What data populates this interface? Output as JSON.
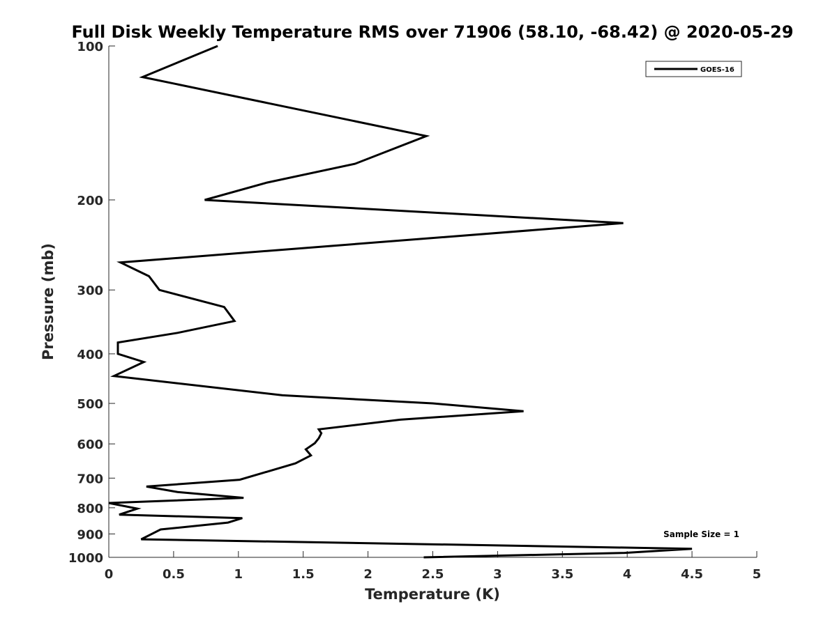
{
  "chart_data": {
    "type": "line",
    "title": "Full Disk Weekly Temperature RMS over 71906 (58.10, -68.42) @ 2020-05-29",
    "xlabel": "Temperature (K)",
    "ylabel": "Pressure (mb)",
    "xlim": [
      0,
      5
    ],
    "ylim": [
      1000,
      100
    ],
    "y_scale": "log",
    "y_reversed": true,
    "x_ticks": [
      "0",
      "0.5",
      "1",
      "1.5",
      "2",
      "2.5",
      "3",
      "3.5",
      "4",
      "4.5",
      "5"
    ],
    "y_ticks": [
      "100",
      "200",
      "300",
      "400",
      "500",
      "600",
      "700",
      "800",
      "900",
      "1000"
    ],
    "grid": false,
    "legend_position": "top-right",
    "annotation": "Sample Size = 1",
    "series": [
      {
        "name": "GOES-16",
        "color": "#000000",
        "x": [
          0.84,
          0.26,
          2.45,
          1.9,
          1.22,
          0.74,
          3.97,
          0.09,
          0.31,
          0.39,
          0.89,
          0.97,
          0.53,
          0.07,
          0.07,
          0.27,
          0.04,
          1.34,
          2.5,
          3.2,
          2.25,
          1.62,
          1.64,
          1.62,
          1.59,
          1.52,
          1.56,
          1.44,
          1.01,
          0.29,
          0.53,
          1.04,
          0.0,
          0.22,
          0.08,
          1.03,
          0.92,
          0.4,
          0.25,
          4.5,
          3.98,
          2.43
        ],
        "y": [
          100,
          115,
          150,
          170,
          185,
          200,
          222,
          265,
          282,
          300,
          324,
          345,
          364,
          380,
          400,
          415,
          442,
          482,
          500,
          518,
          538,
          562,
          572,
          585,
          598,
          615,
          632,
          655,
          705,
          727,
          745,
          765,
          783,
          803,
          825,
          838,
          855,
          882,
          922,
          962,
          980,
          1000
        ]
      }
    ]
  }
}
